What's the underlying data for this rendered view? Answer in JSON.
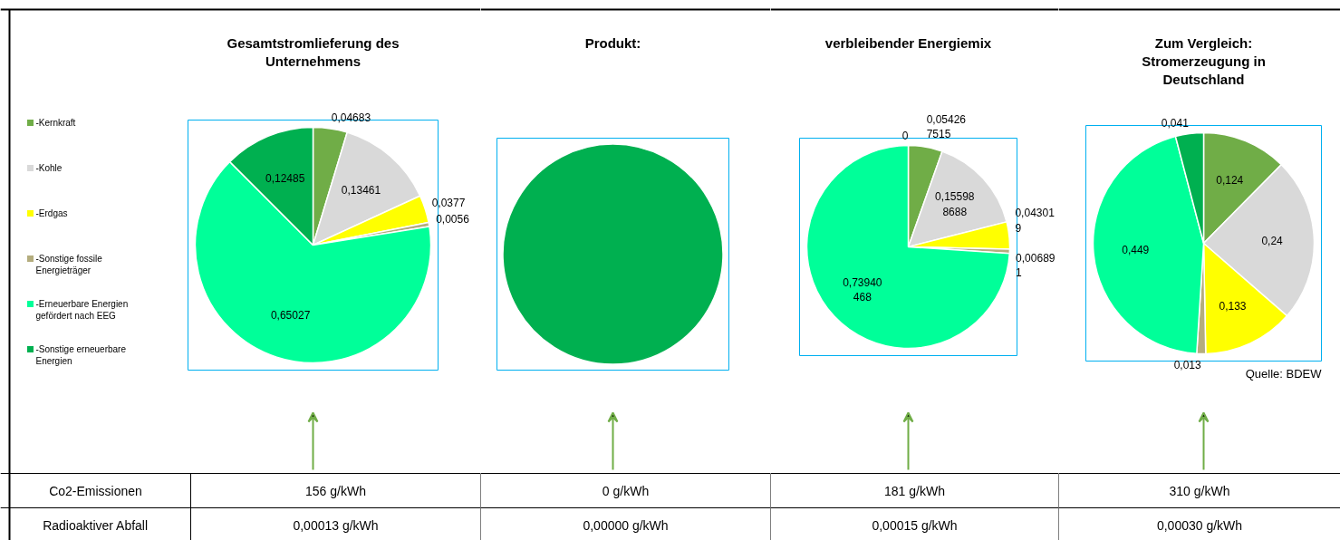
{
  "chart_data": [
    {
      "type": "pie",
      "title": "Gesamtstromlieferung des Unternehmens",
      "legend": "left",
      "value_labels": [
        "0,04683",
        "0,13461",
        "0,0377",
        "0,0056",
        "0,65027",
        "0,12485"
      ],
      "categories": [
        "-Kernkraft",
        "-Kohle",
        "-Erdgas",
        "-Sonstige fossile Energieträger",
        "-Erneuerbare Energien gefördert nach EEG",
        "-Sonstige erneuerbare Energien"
      ],
      "values": [
        0.04683,
        0.13461,
        0.0377,
        0.0056,
        0.65027,
        0.12485
      ],
      "colors": [
        "#70ad47",
        "#d9d9d9",
        "#ffff00",
        "#b4ad7e",
        "#00ff99",
        "#00b050"
      ],
      "annotations": [
        "156 g/kWh",
        "0,00013 g/kWh",
        "Co2-Emissionen",
        "Radioaktiver Abfall"
      ]
    },
    {
      "type": "pie",
      "title": "Produkt:",
      "values": [
        0,
        0,
        0,
        0,
        0,
        100
      ],
      "colors": [
        "#70ad47",
        "#d9d9d9",
        "#ffff00",
        "#b4ad7e",
        "#00ff99",
        "#00b050"
      ],
      "annotations": [
        "0 g/kWh",
        "0,00000 g/kWh"
      ]
    },
    {
      "type": "pie",
      "title": "verbleibender Energiemix",
      "values": [
        0.054267515,
        0.155988688,
        0.043019,
        0.006891,
        0.73940468,
        0
      ],
      "value_labels": [
        "0,054267515",
        "0,155988688",
        "0,043019",
        "0,006891",
        "0,73940468",
        "0"
      ],
      "colors": [
        "#70ad47",
        "#d9d9d9",
        "#ffff00",
        "#b4ad7e",
        "#00ff99",
        "#00b050"
      ],
      "annotations": [
        "181 g/kWh",
        "0,00015 g/kWh"
      ]
    },
    {
      "type": "pie",
      "title": "Zum Vergleich: Stromerzeugung in Deutschland",
      "value_labels": [
        "0,124",
        "0,24",
        "0,133",
        "0,013",
        "0,449",
        "0,041"
      ],
      "values": [
        0.124,
        0.24,
        0.133,
        0.013,
        0.449,
        0.041
      ],
      "colors": [
        "#70ad47",
        "#d9d9d9",
        "#ffff00",
        "#b4ad7e",
        "#00ff99",
        "#00b050"
      ],
      "annotations": [
        "310 g/kWh",
        "0,00030 g/kWh",
        "Quelle: BDEW"
      ]
    }
  ]
}
